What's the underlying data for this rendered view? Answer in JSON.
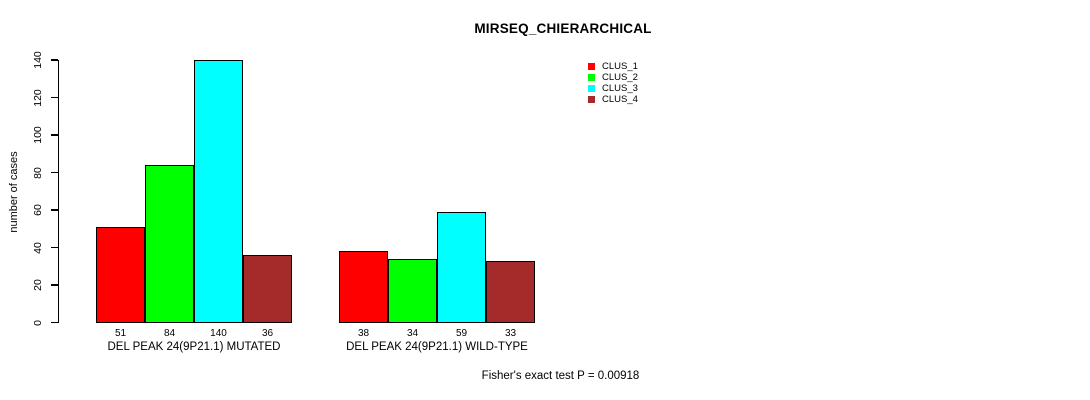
{
  "chart_data": {
    "type": "bar",
    "title": "MIRSEQ_CHIERARCHICAL",
    "ylabel": "number of cases",
    "xlabel": "",
    "ylim": [
      0,
      140
    ],
    "yticks": [
      0,
      20,
      40,
      60,
      80,
      100,
      120,
      140
    ],
    "grid": false,
    "legend_position": "top-right",
    "categories": [
      "DEL PEAK 24(9P21.1) MUTATED",
      "DEL PEAK 24(9P21.1) WILD-TYPE"
    ],
    "series": [
      {
        "name": "CLUS_1",
        "color": "#FF0000",
        "values": [
          51,
          38
        ]
      },
      {
        "name": "CLUS_2",
        "color": "#00FF00",
        "values": [
          84,
          34
        ]
      },
      {
        "name": "CLUS_3",
        "color": "#00FFFF",
        "values": [
          140,
          59
        ]
      },
      {
        "name": "CLUS_4",
        "color": "#A52A2A",
        "values": [
          36,
          33
        ]
      }
    ],
    "bar_value_labels": [
      [
        "51",
        "84",
        "140",
        "36"
      ],
      [
        "38",
        "34",
        "59",
        "33"
      ]
    ],
    "annotation": "Fisher's exact test P = 0.00918",
    "colors": {
      "axis": "#000000",
      "bar_border": "#000000",
      "text": "#000000",
      "background": "#FFFFFF"
    }
  }
}
